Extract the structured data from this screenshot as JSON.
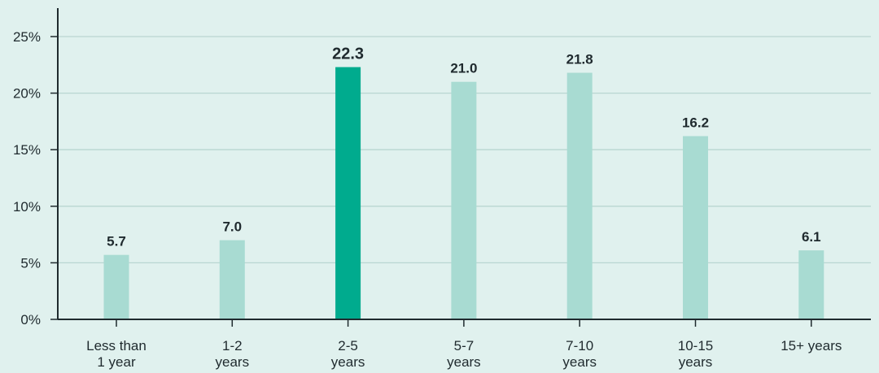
{
  "chart_data": {
    "type": "bar",
    "categories": [
      [
        "Less than",
        "1 year"
      ],
      [
        "1-2",
        "years"
      ],
      [
        "2-5",
        "years"
      ],
      [
        "5-7",
        "years"
      ],
      [
        "7-10",
        "years"
      ],
      [
        "10-15",
        "years"
      ],
      [
        "15+ years"
      ]
    ],
    "values": [
      5.7,
      7.0,
      22.3,
      21.0,
      21.8,
      16.2,
      6.1
    ],
    "value_labels": [
      "5.7",
      "7.0",
      "22.3",
      "21.0",
      "21.8",
      "16.2",
      "6.1"
    ],
    "highlight_index": 2,
    "ylim": [
      0,
      25
    ],
    "yticks": [
      0,
      5,
      10,
      15,
      20,
      25
    ],
    "ytick_labels": [
      "0%",
      "5%",
      "10%",
      "15%",
      "20%",
      "25%"
    ],
    "grid": true,
    "colors": {
      "background": "#e0f1ee",
      "bar": "#a8dbd2",
      "bar_highlight": "#00ab8e",
      "grid": "#b9d6d1",
      "axis": "#1f2a2e"
    }
  }
}
